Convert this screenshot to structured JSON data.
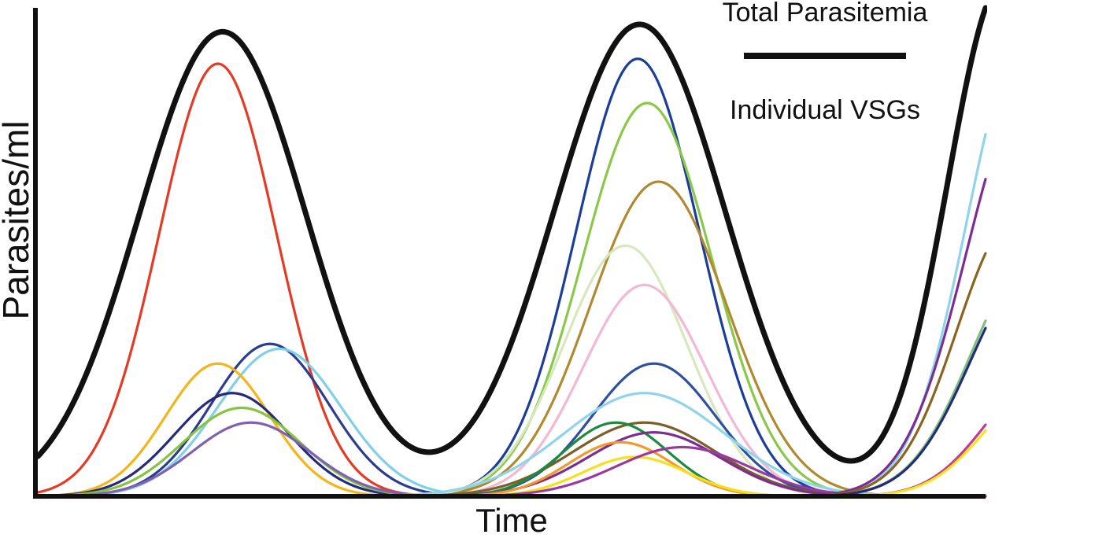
{
  "chart_data": {
    "type": "line",
    "title": "",
    "xlabel": "Time",
    "ylabel": "Parasites/ml",
    "xlim": [
      0,
      1
    ],
    "ylim": [
      0,
      1
    ],
    "ticks": "none",
    "grid": false,
    "legend": {
      "placement": "top-right",
      "entries": [
        {
          "label": "Total Parasitemia",
          "style": "thick-black-line"
        },
        {
          "label": "Individual VSGs",
          "style": "rainbow-gradient-line",
          "gradient": [
            "#e2231a",
            "#f7941d",
            "#f2e61e",
            "#8dc63f",
            "#00923f",
            "#1e3a8a"
          ]
        }
      ]
    },
    "series": [
      {
        "color": "#111111",
        "width": 7,
        "peaks": [
          {
            "c": 0.195,
            "h": 0.945,
            "w": 0.088
          },
          {
            "c": 0.635,
            "h": 0.96,
            "w": 0.09
          },
          {
            "c": 1.02,
            "h": 1.05,
            "w": 0.06
          }
        ]
      },
      {
        "color": "#e33b24",
        "peaks": [
          {
            "c": 0.19,
            "h": 0.88,
            "w": 0.062
          }
        ]
      },
      {
        "color": "#2a3d8f",
        "peaks": [
          {
            "c": 0.245,
            "h": 0.31,
            "w": 0.062
          }
        ]
      },
      {
        "color": "#7fd0e8",
        "peaks": [
          {
            "c": 0.255,
            "h": 0.3,
            "w": 0.065
          }
        ]
      },
      {
        "color": "#f5b41a",
        "peaks": [
          {
            "c": 0.19,
            "h": 0.27,
            "w": 0.055
          }
        ]
      },
      {
        "color": "#262a7a",
        "peaks": [
          {
            "c": 0.205,
            "h": 0.21,
            "w": 0.06
          }
        ]
      },
      {
        "color": "#86c440",
        "peaks": [
          {
            "c": 0.215,
            "h": 0.18,
            "w": 0.062
          }
        ]
      },
      {
        "color": "#8060b0",
        "peaks": [
          {
            "c": 0.225,
            "h": 0.15,
            "w": 0.062
          }
        ]
      },
      {
        "color": "#1c3d99",
        "peaks": [
          {
            "c": 0.633,
            "h": 0.89,
            "w": 0.065
          }
        ]
      },
      {
        "color": "#8ac84a",
        "peaks": [
          {
            "c": 0.643,
            "h": 0.8,
            "w": 0.068
          }
        ]
      },
      {
        "color": "#b08a30",
        "peaks": [
          {
            "c": 0.655,
            "h": 0.64,
            "w": 0.072
          }
        ]
      },
      {
        "color": "#d6e8bc",
        "peaks": [
          {
            "c": 0.62,
            "h": 0.51,
            "w": 0.065
          }
        ]
      },
      {
        "color": "#f2b8d4",
        "peaks": [
          {
            "c": 0.64,
            "h": 0.43,
            "w": 0.065
          }
        ]
      },
      {
        "color": "#2f4f9f",
        "peaks": [
          {
            "c": 0.65,
            "h": 0.27,
            "w": 0.065
          }
        ]
      },
      {
        "color": "#8fd4ea",
        "peaks": [
          {
            "c": 0.64,
            "h": 0.21,
            "w": 0.085
          }
        ]
      },
      {
        "color": "#7a5f28",
        "peaks": [
          {
            "c": 0.64,
            "h": 0.15,
            "w": 0.075
          }
        ]
      },
      {
        "color": "#1d8a3e",
        "peaks": [
          {
            "c": 0.61,
            "h": 0.15,
            "w": 0.055
          }
        ]
      },
      {
        "color": "#7b2d91",
        "peaks": [
          {
            "c": 0.65,
            "h": 0.13,
            "w": 0.07
          }
        ]
      },
      {
        "color": "#f39a2a",
        "peaks": [
          {
            "c": 0.615,
            "h": 0.11,
            "w": 0.055
          }
        ]
      },
      {
        "color": "#f5e020",
        "peaks": [
          {
            "c": 0.63,
            "h": 0.08,
            "w": 0.055
          }
        ]
      },
      {
        "color": "#9a3aa0",
        "peaks": [
          {
            "c": 0.68,
            "h": 0.1,
            "w": 0.07
          }
        ]
      },
      {
        "color": "#8fd4ea",
        "peaks": [
          {
            "c": 1.04,
            "h": 0.92,
            "w": 0.06
          }
        ]
      },
      {
        "color": "#7b2d91",
        "peaks": [
          {
            "c": 1.045,
            "h": 0.82,
            "w": 0.065
          }
        ]
      },
      {
        "color": "#8a6420",
        "peaks": [
          {
            "c": 1.03,
            "h": 0.56,
            "w": 0.06
          }
        ]
      },
      {
        "color": "#7fbf7f",
        "peaks": [
          {
            "c": 1.05,
            "h": 0.48,
            "w": 0.065
          }
        ]
      },
      {
        "color": "#262a7a",
        "peaks": [
          {
            "c": 1.05,
            "h": 0.46,
            "w": 0.065
          }
        ]
      },
      {
        "color": "#c83a8c",
        "peaks": [
          {
            "c": 1.06,
            "h": 0.24,
            "w": 0.06
          }
        ]
      },
      {
        "color": "#f2e61e",
        "peaks": [
          {
            "c": 1.06,
            "h": 0.22,
            "w": 0.06
          }
        ]
      }
    ]
  }
}
